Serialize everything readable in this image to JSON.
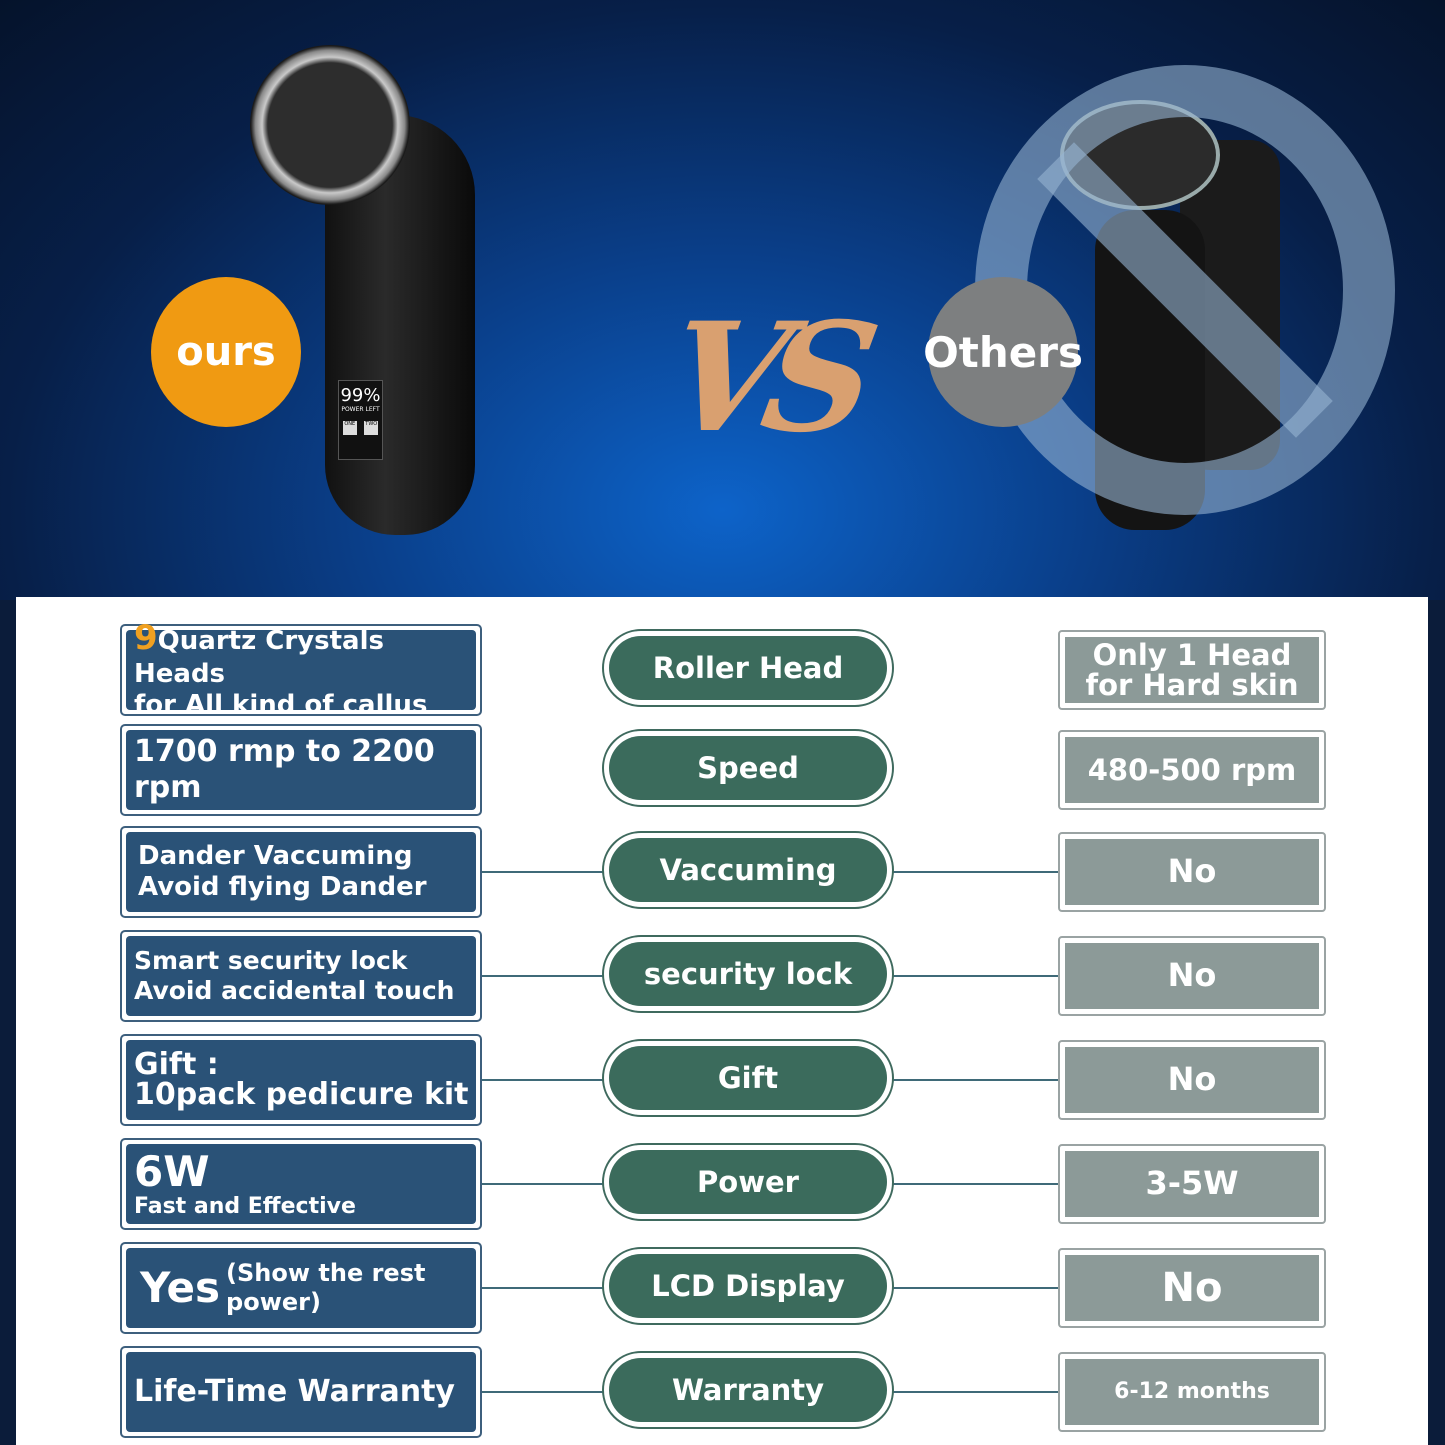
{
  "hero": {
    "ours_label": "ours",
    "others_label": "Others",
    "vs_label": "VS",
    "lcd": {
      "percent": "99%",
      "caption": "POWER LEFT",
      "button_one": "ONE",
      "button_two": "TWO"
    }
  },
  "colors": {
    "ours_badge": "#f09a12",
    "others_badge": "#7d7f80",
    "ours_box": "#2a5277",
    "feature_pill": "#3b6b5c",
    "others_box": "#8c9a98"
  },
  "rows": [
    {
      "ours_highlight": "9",
      "ours_line1": "Quartz Crystals Heads",
      "ours_line2": "for All kind of callus",
      "feature": "Roller Head",
      "others": "Only 1 Head for Hard skin"
    },
    {
      "ours_line1": "1700 rmp to 2200 rpm",
      "feature": "Speed",
      "others": "480-500 rpm"
    },
    {
      "ours_line1": "Dander Vaccuming",
      "ours_line2": "Avoid flying Dander",
      "feature": "Vaccuming",
      "others": "No"
    },
    {
      "ours_line1": "Smart security lock",
      "ours_line2": "Avoid accidental touch",
      "feature": "security lock",
      "others": "No"
    },
    {
      "ours_line1": "Gift :",
      "ours_line2": "10pack pedicure kit",
      "feature": "Gift",
      "others": "No"
    },
    {
      "ours_line1": "6W",
      "ours_line2": "Fast and Effective",
      "feature": "Power",
      "others": "3-5W"
    },
    {
      "ours_line1": "Yes",
      "ours_line2": "(Show the rest power)",
      "feature": "LCD Display",
      "others": "No"
    },
    {
      "ours_line1": "Life-Time Warranty",
      "feature": "Warranty",
      "others": "6-12 months"
    }
  ]
}
